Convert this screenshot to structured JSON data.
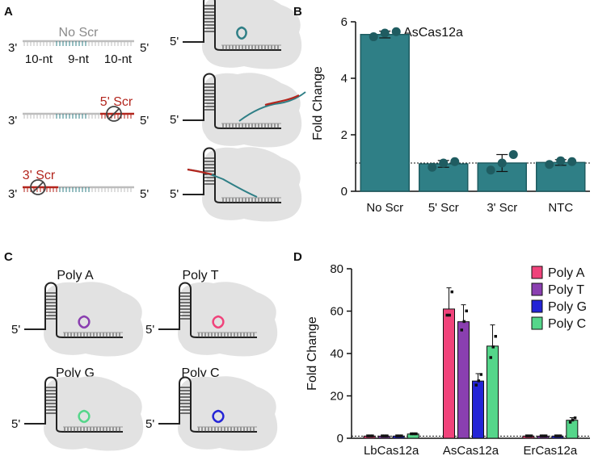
{
  "panels": {
    "a": "A",
    "b": "B",
    "c": "C",
    "d": "D"
  },
  "colors": {
    "teal": "#2f7f86",
    "teal_dark": "#1f5c61",
    "red": "#b3261e",
    "gray": "#bdbdbd",
    "blob": "#e2e2e2",
    "polyA": "#f0437b",
    "polyT": "#8a3fb0",
    "polyG": "#2424d6",
    "polyC": "#55d68a"
  },
  "panel_a": {
    "targets": [
      {
        "label": "No Scr",
        "five": "5'",
        "three": "3'"
      },
      {
        "label": "5' Scr",
        "five": "5'",
        "three": "3'"
      },
      {
        "label": "3' Scr",
        "five": "5'",
        "three": "3'"
      }
    ],
    "segments": [
      "10-nt",
      "9-nt",
      "10-nt"
    ],
    "complex_five": "5'"
  },
  "panel_c": {
    "items": [
      {
        "label": "Poly A",
        "five": "5'",
        "color": "#8a3fb0"
      },
      {
        "label": "Poly T",
        "five": "5'",
        "color": "#f0437b"
      },
      {
        "label": "Poly G",
        "five": "5'",
        "color": "#55d68a"
      },
      {
        "label": "Poly C",
        "five": "5'",
        "color": "#2424d6"
      }
    ]
  },
  "chart_data": [
    {
      "type": "bar",
      "title": "AsCas12a",
      "ylabel": "Fold Change",
      "xlabel": "",
      "categories": [
        "No Scr",
        "5' Scr",
        "3' Scr",
        "NTC"
      ],
      "values": [
        5.55,
        0.97,
        1.0,
        1.02
      ],
      "errors": [
        0.12,
        0.12,
        0.3,
        0.1
      ],
      "points": [
        [
          5.47,
          5.6,
          5.65
        ],
        [
          0.85,
          1.0,
          1.05
        ],
        [
          0.75,
          1.0,
          1.3
        ],
        [
          0.95,
          1.08,
          1.05
        ]
      ],
      "yticks": [
        0,
        2,
        4,
        6
      ],
      "ylim": [
        0,
        6
      ],
      "reference_line": 1
    },
    {
      "type": "bar",
      "ylabel": "Fold Change",
      "xlabel": "",
      "groups": [
        "LbCas12a",
        "AsCas12a",
        "ErCas12a"
      ],
      "series": [
        {
          "name": "Poly A",
          "values": [
            1,
            61,
            1
          ],
          "errors": [
            0.3,
            10,
            0.3
          ],
          "points": [
            [
              1,
              1,
              1
            ],
            [
              58,
              58,
              69
            ],
            [
              1,
              1,
              1
            ]
          ]
        },
        {
          "name": "Poly T",
          "values": [
            1,
            55,
            1
          ],
          "errors": [
            0.3,
            8,
            0.3
          ],
          "points": [
            [
              1,
              1,
              1
            ],
            [
              51,
              55,
              60
            ],
            [
              1,
              1,
              1
            ]
          ]
        },
        {
          "name": "Poly G",
          "values": [
            1,
            27,
            1
          ],
          "errors": [
            0.3,
            3.5,
            0.3
          ],
          "points": [
            [
              1,
              1,
              1
            ],
            [
              25,
              27,
              30
            ],
            [
              1,
              1,
              1
            ]
          ]
        },
        {
          "name": "Poly C",
          "values": [
            2,
            43.5,
            8.5
          ],
          "errors": [
            0.3,
            10,
            1.2
          ],
          "points": [
            [
              2,
              2,
              2
            ],
            [
              38,
              43,
              48
            ],
            [
              7.5,
              8.5,
              9.5
            ]
          ]
        }
      ],
      "yticks": [
        0,
        20,
        40,
        60,
        80
      ],
      "ylim": [
        0,
        80
      ],
      "reference_line": 1
    }
  ]
}
